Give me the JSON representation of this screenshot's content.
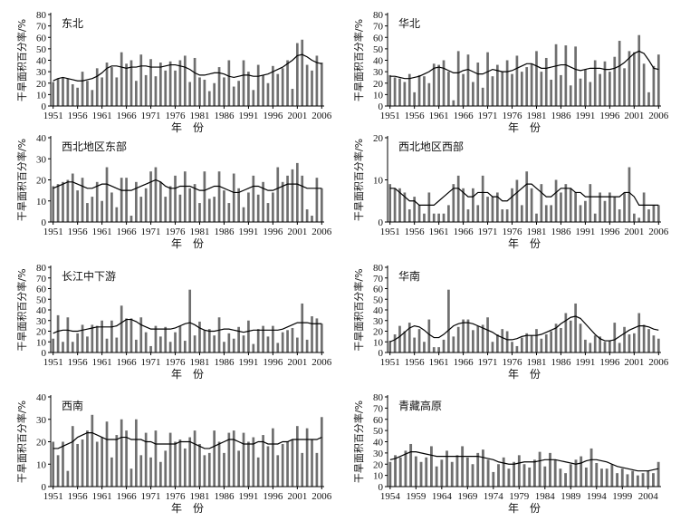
{
  "chart_data": [
    {
      "type": "bar",
      "title": "东北",
      "xlabel": "年　份",
      "ylabel": "干旱面积百分率/%",
      "ylim": [
        0,
        80
      ],
      "yticks": [
        0,
        10,
        20,
        30,
        40,
        50,
        60,
        70,
        80
      ],
      "xticks": [
        1951,
        1956,
        1961,
        1966,
        1971,
        1976,
        1981,
        1986,
        1991,
        1996,
        2001,
        2006
      ],
      "x_start": 1951,
      "x_end": 2006,
      "values": [
        21,
        24,
        25,
        24,
        19,
        16,
        30,
        22,
        14,
        33,
        25,
        38,
        34,
        25,
        47,
        37,
        40,
        22,
        45,
        27,
        41,
        26,
        38,
        31,
        39,
        31,
        40,
        44,
        21,
        42,
        25,
        23,
        13,
        20,
        34,
        25,
        40,
        17,
        22,
        40,
        30,
        14,
        36,
        27,
        20,
        35,
        28,
        33,
        40,
        15,
        55,
        58,
        36,
        31,
        44,
        38
      ],
      "smooth": [
        22,
        24,
        25,
        24,
        23,
        22,
        22,
        23,
        24,
        26,
        29,
        33,
        35,
        35,
        34,
        33,
        34,
        34,
        35,
        35,
        34,
        34,
        34,
        35,
        36,
        36,
        35,
        34,
        32,
        29,
        27,
        27,
        28,
        29,
        29,
        28,
        26,
        25,
        26,
        27,
        27,
        26,
        26,
        27,
        28,
        30,
        32,
        34,
        37,
        40,
        44,
        45,
        43,
        40,
        38,
        37
      ]
    },
    {
      "type": "bar",
      "title": "华北",
      "xlabel": "年　份",
      "ylabel": "干旱面积百分率/%",
      "ylim": [
        0,
        80
      ],
      "yticks": [
        0,
        10,
        20,
        30,
        40,
        50,
        60,
        70,
        80
      ],
      "xticks": [
        1951,
        1956,
        1961,
        1966,
        1971,
        1976,
        1981,
        1986,
        1991,
        1996,
        2001,
        2006
      ],
      "x_start": 1951,
      "x_end": 2006,
      "values": [
        27,
        25,
        24,
        21,
        28,
        12,
        27,
        26,
        20,
        37,
        36,
        40,
        30,
        5,
        48,
        28,
        45,
        21,
        38,
        16,
        47,
        26,
        36,
        30,
        40,
        28,
        44,
        30,
        34,
        37,
        48,
        30,
        42,
        23,
        54,
        27,
        53,
        18,
        52,
        24,
        32,
        21,
        40,
        28,
        39,
        30,
        43,
        57,
        33,
        48,
        47,
        62,
        37,
        12,
        35,
        45
      ],
      "smooth": [
        26,
        26,
        25,
        24,
        24,
        25,
        26,
        28,
        30,
        33,
        34,
        33,
        31,
        29,
        29,
        31,
        32,
        30,
        28,
        28,
        30,
        32,
        31,
        30,
        30,
        31,
        33,
        35,
        37,
        37,
        35,
        33,
        33,
        34,
        35,
        36,
        36,
        34,
        32,
        31,
        32,
        33,
        33,
        33,
        32,
        32,
        33,
        35,
        38,
        42,
        46,
        48,
        46,
        40,
        33,
        32
      ]
    },
    {
      "type": "bar",
      "title": "西北地区东部",
      "xlabel": "年　份",
      "ylabel": "干旱面积百分率/%",
      "ylim": [
        0,
        40
      ],
      "yticks": [
        0,
        10,
        20,
        30,
        40
      ],
      "xticks": [
        1951,
        1956,
        1961,
        1966,
        1971,
        1976,
        1981,
        1986,
        1991,
        1996,
        2001,
        2006
      ],
      "x_start": 1951,
      "x_end": 2006,
      "values": [
        17,
        18,
        19,
        20,
        23,
        15,
        21,
        9,
        12,
        19,
        10,
        26,
        14,
        7,
        21,
        21,
        3,
        19,
        12,
        16,
        24,
        26,
        19,
        12,
        17,
        22,
        13,
        24,
        16,
        18,
        9,
        24,
        11,
        12,
        24,
        15,
        9,
        23,
        16,
        7,
        14,
        22,
        13,
        19,
        9,
        14,
        26,
        19,
        22,
        25,
        28,
        22,
        6,
        3,
        21,
        16
      ],
      "smooth": [
        16,
        17,
        18,
        19,
        19,
        18,
        17,
        16,
        16,
        17,
        18,
        18,
        17,
        16,
        15,
        15,
        15,
        16,
        17,
        18,
        19,
        20,
        19,
        17,
        16,
        16,
        17,
        17,
        17,
        16,
        15,
        15,
        16,
        17,
        17,
        16,
        15,
        14,
        14,
        15,
        16,
        17,
        17,
        16,
        15,
        15,
        16,
        17,
        18,
        18,
        18,
        17,
        16,
        16,
        16,
        16
      ]
    },
    {
      "type": "bar",
      "title": "西北地区西部",
      "xlabel": "年　份",
      "ylabel": "干旱面积百分率/%",
      "ylim": [
        0,
        20
      ],
      "yticks": [
        0,
        10,
        20
      ],
      "xticks": [
        1951,
        1956,
        1961,
        1966,
        1971,
        1976,
        1981,
        1986,
        1991,
        1996,
        2001,
        2006
      ],
      "x_start": 1951,
      "x_end": 2006,
      "values": [
        9,
        8,
        8,
        7,
        3,
        6,
        4,
        2,
        7,
        2,
        2,
        2,
        4,
        9,
        11,
        8,
        3,
        8,
        4,
        11,
        6,
        6,
        7,
        3,
        3,
        8,
        10,
        4,
        12,
        8,
        2,
        9,
        4,
        4,
        10,
        7,
        9,
        8,
        7,
        4,
        5,
        9,
        2,
        7,
        5,
        7,
        6,
        3,
        7,
        13,
        2,
        1,
        7,
        3,
        4,
        4
      ],
      "smooth": [
        8,
        8,
        7,
        6,
        5,
        5,
        4,
        4,
        4,
        4,
        5,
        6,
        7,
        8,
        8,
        7,
        6,
        6,
        7,
        7,
        7,
        6,
        6,
        5,
        5,
        6,
        7,
        8,
        9,
        9,
        8,
        7,
        6,
        6,
        7,
        8,
        8,
        8,
        7,
        7,
        6,
        6,
        6,
        6,
        6,
        6,
        6,
        6,
        7,
        7,
        6,
        4,
        4,
        4,
        4,
        4
      ]
    },
    {
      "type": "bar",
      "title": "长江中下游",
      "xlabel": "年　份",
      "ylabel": "干旱面积百分率/%",
      "ylim": [
        0,
        80
      ],
      "yticks": [
        0,
        10,
        20,
        30,
        40,
        50,
        60,
        70,
        80
      ],
      "xticks": [
        1951,
        1956,
        1961,
        1966,
        1971,
        1976,
        1981,
        1986,
        1991,
        1996,
        2001,
        2006
      ],
      "x_start": 1951,
      "x_end": 2006,
      "values": [
        13,
        35,
        10,
        33,
        10,
        18,
        26,
        15,
        26,
        25,
        30,
        13,
        30,
        14,
        44,
        32,
        32,
        12,
        33,
        19,
        6,
        25,
        15,
        24,
        10,
        19,
        25,
        11,
        59,
        16,
        29,
        21,
        22,
        16,
        33,
        10,
        18,
        13,
        24,
        16,
        30,
        8,
        22,
        25,
        15,
        25,
        9,
        19,
        21,
        23,
        14,
        46,
        12,
        34,
        32,
        27
      ],
      "smooth": [
        18,
        20,
        21,
        21,
        20,
        20,
        21,
        22,
        23,
        24,
        24,
        24,
        24,
        25,
        28,
        31,
        31,
        29,
        26,
        24,
        22,
        22,
        22,
        22,
        22,
        23,
        25,
        27,
        28,
        26,
        23,
        21,
        20,
        20,
        21,
        22,
        22,
        21,
        20,
        19,
        20,
        21,
        21,
        21,
        21,
        21,
        21,
        22,
        24,
        26,
        28,
        28,
        28,
        27,
        27,
        27
      ]
    },
    {
      "type": "bar",
      "title": "华南",
      "xlabel": "年　份",
      "ylabel": "干旱面积百分率/%",
      "ylim": [
        0,
        80
      ],
      "yticks": [
        0,
        10,
        20,
        30,
        40,
        50,
        60,
        70,
        80
      ],
      "xticks": [
        1951,
        1956,
        1961,
        1966,
        1971,
        1976,
        1981,
        1986,
        1991,
        1996,
        2001,
        2006
      ],
      "x_start": 1951,
      "x_end": 2006,
      "values": [
        11,
        17,
        25,
        20,
        28,
        14,
        22,
        10,
        31,
        5,
        5,
        12,
        59,
        15,
        24,
        31,
        31,
        21,
        25,
        26,
        33,
        10,
        17,
        22,
        20,
        10,
        6,
        14,
        18,
        16,
        22,
        13,
        17,
        20,
        27,
        23,
        37,
        30,
        46,
        27,
        12,
        9,
        16,
        15,
        10,
        11,
        28,
        9,
        24,
        17,
        18,
        37,
        26,
        22,
        16,
        13
      ],
      "smooth": [
        10,
        12,
        15,
        19,
        23,
        25,
        24,
        21,
        17,
        14,
        14,
        17,
        21,
        25,
        27,
        28,
        28,
        27,
        25,
        23,
        21,
        19,
        16,
        14,
        12,
        12,
        13,
        15,
        16,
        16,
        16,
        17,
        19,
        21,
        23,
        27,
        30,
        33,
        34,
        32,
        27,
        22,
        17,
        13,
        11,
        11,
        12,
        15,
        18,
        21,
        23,
        25,
        25,
        24,
        22,
        21
      ]
    },
    {
      "type": "bar",
      "title": "西南",
      "xlabel": "年　份",
      "ylabel": "干旱面积百分率/%",
      "ylim": [
        0,
        40
      ],
      "yticks": [
        0,
        10,
        20,
        30,
        40
      ],
      "xticks": [
        1951,
        1956,
        1961,
        1966,
        1971,
        1976,
        1981,
        1986,
        1991,
        1996,
        2001,
        2006
      ],
      "x_start": 1951,
      "x_end": 2006,
      "values": [
        20,
        14,
        20,
        7,
        27,
        19,
        21,
        25,
        32,
        20,
        22,
        29,
        13,
        23,
        30,
        25,
        8,
        30,
        14,
        24,
        13,
        25,
        11,
        16,
        24,
        20,
        21,
        17,
        22,
        25,
        19,
        14,
        15,
        25,
        20,
        15,
        24,
        25,
        16,
        24,
        20,
        22,
        13,
        23,
        18,
        26,
        14,
        19,
        20,
        21,
        27,
        15,
        26,
        21,
        15,
        31
      ],
      "smooth": [
        17,
        17,
        18,
        19,
        20,
        22,
        23,
        24,
        24,
        23,
        22,
        21,
        21,
        21,
        22,
        22,
        21,
        21,
        21,
        20,
        20,
        19,
        19,
        19,
        19,
        19,
        20,
        20,
        20,
        19,
        18,
        17,
        17,
        18,
        19,
        20,
        21,
        21,
        20,
        19,
        19,
        19,
        20,
        20,
        19,
        19,
        19,
        20,
        20,
        21,
        21,
        21,
        21,
        21,
        21,
        22
      ]
    },
    {
      "type": "bar",
      "title": "青藏高原",
      "xlabel": "年　份",
      "ylabel": "干旱面积百分率/%",
      "ylim": [
        0,
        80
      ],
      "yticks": [
        0,
        10,
        20,
        30,
        40,
        50,
        60,
        70,
        80
      ],
      "xticks": [
        1954,
        1959,
        1964,
        1969,
        1974,
        1979,
        1984,
        1989,
        1994,
        1999,
        2004
      ],
      "x_start": 1954,
      "x_end": 2006,
      "values": [
        22,
        28,
        26,
        32,
        38,
        27,
        22,
        26,
        36,
        18,
        24,
        32,
        22,
        28,
        36,
        26,
        20,
        30,
        33,
        24,
        13,
        20,
        26,
        16,
        22,
        28,
        20,
        17,
        24,
        31,
        18,
        30,
        24,
        16,
        12,
        20,
        24,
        27,
        17,
        34,
        21,
        16,
        16,
        20,
        12,
        16,
        11,
        14,
        10,
        12,
        14,
        12,
        22
      ],
      "smooth": [
        24,
        25,
        27,
        29,
        31,
        31,
        30,
        29,
        28,
        27,
        27,
        27,
        27,
        27,
        27,
        27,
        27,
        27,
        26,
        25,
        24,
        22,
        21,
        20,
        20,
        21,
        22,
        22,
        22,
        23,
        24,
        24,
        24,
        23,
        22,
        21,
        20,
        21,
        23,
        24,
        24,
        23,
        22,
        20,
        18,
        17,
        16,
        15,
        14,
        14,
        14,
        15,
        16
      ]
    }
  ]
}
